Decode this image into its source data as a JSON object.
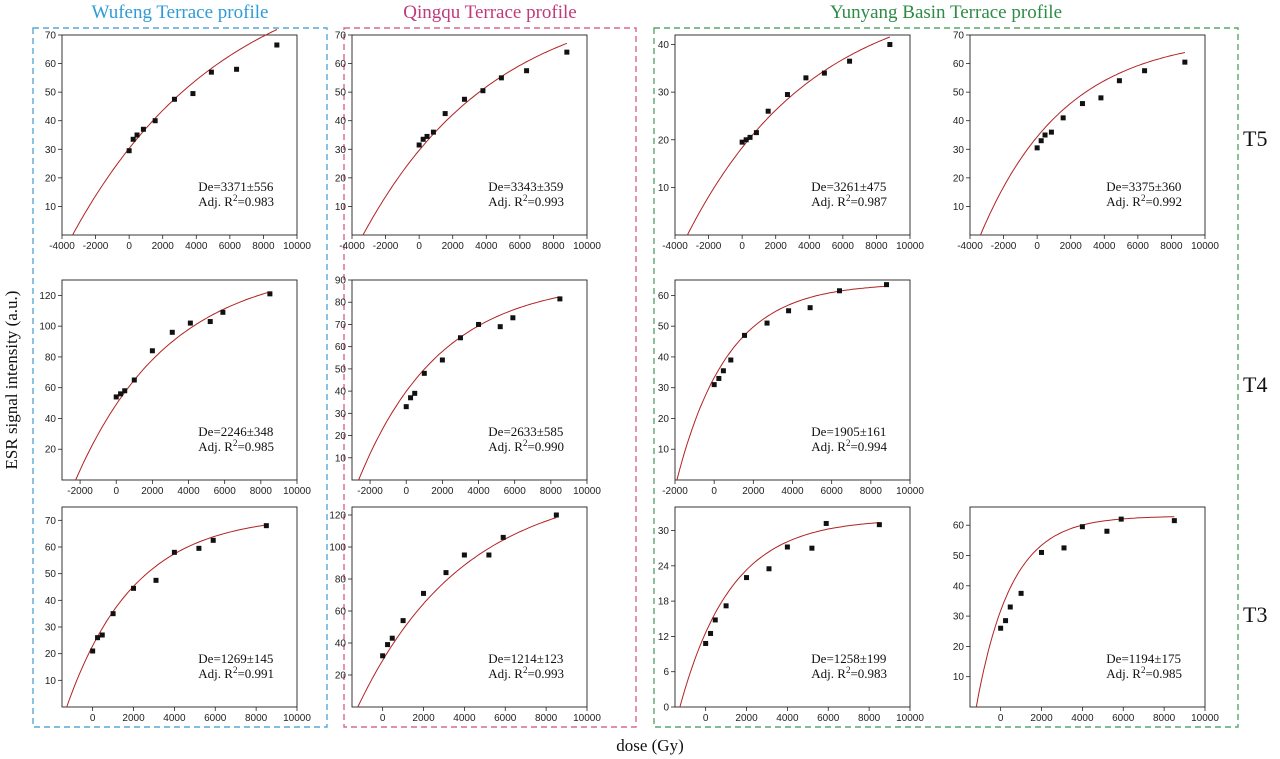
{
  "profiles": [
    {
      "title": "Wufeng Terrace profile",
      "color": "#2e9bd6"
    },
    {
      "title": "Qingqu Terrace profile",
      "color": "#c2397a"
    },
    {
      "title": "Yunyang Basin Terrace profile",
      "color": "#2e8b46"
    }
  ],
  "frame_colors": [
    "#5aa7d6",
    "#d66a94",
    "#5aa56c"
  ],
  "row_labels": [
    "T5",
    "T4",
    "T3"
  ],
  "y_axis_label": "ESR signal intensity (a.u.)",
  "x_axis_label": "dose (Gy)",
  "fit_color": "#b22222",
  "chart_data": [
    {
      "type": "scatter",
      "id": "r0c0",
      "row": 0,
      "col": 0,
      "x": [
        0,
        240,
        470,
        850,
        1550,
        2700,
        3800,
        4900,
        6400,
        8800
      ],
      "y": [
        29.5,
        33.5,
        35,
        37,
        40,
        47.5,
        49.5,
        57,
        58,
        66.5
      ],
      "xlim": [
        -4000,
        10000
      ],
      "ylim": [
        0,
        70
      ],
      "xticks": [
        -4000,
        -2000,
        0,
        2000,
        4000,
        6000,
        8000,
        10000
      ],
      "yticks": [
        10,
        20,
        30,
        40,
        50,
        60,
        70
      ],
      "fit": {
        "model": "saturating-exponential",
        "De": 3371,
        "Imax": 97,
        "D0": 9000
      },
      "annotation": [
        "De=3371±556",
        "Adj. R",
        "2",
        "=0.983"
      ]
    },
    {
      "type": "scatter",
      "id": "r0c1",
      "row": 0,
      "col": 1,
      "x": [
        0,
        240,
        470,
        850,
        1550,
        2700,
        3800,
        4900,
        6400,
        8800
      ],
      "y": [
        31.5,
        33.5,
        34.5,
        36,
        42.5,
        47.5,
        50.5,
        55,
        57.5,
        64
      ],
      "xlim": [
        -4000,
        10000
      ],
      "ylim": [
        0,
        70
      ],
      "xticks": [
        -4000,
        -2000,
        0,
        2000,
        4000,
        6000,
        8000,
        10000
      ],
      "yticks": [
        10,
        20,
        30,
        40,
        50,
        60,
        70
      ],
      "fit": {
        "model": "saturating-exponential",
        "De": 3343,
        "Imax": 85,
        "D0": 7800
      },
      "annotation": [
        "De=3343±359",
        "Adj. R",
        "2",
        "=0.993"
      ]
    },
    {
      "type": "scatter",
      "id": "r0c2",
      "row": 0,
      "col": 2,
      "x": [
        0,
        240,
        470,
        850,
        1550,
        2700,
        3800,
        4900,
        6400,
        8800
      ],
      "y": [
        19.5,
        20,
        20.5,
        21.5,
        26,
        29.5,
        33,
        34,
        36.5,
        40
      ],
      "xlim": [
        -4000,
        10000
      ],
      "ylim": [
        0,
        42
      ],
      "xticks": [
        -4000,
        -2000,
        0,
        2000,
        4000,
        6000,
        8000,
        10000
      ],
      "yticks": [
        10,
        20,
        30,
        40
      ],
      "fit": {
        "model": "saturating-exponential",
        "De": 3261,
        "Imax": 52,
        "D0": 7500
      },
      "annotation": [
        "De=3261±475",
        "Adj. R",
        "2",
        "=0.987"
      ]
    },
    {
      "type": "scatter",
      "id": "r0c3",
      "row": 0,
      "col": 3,
      "x": [
        0,
        240,
        470,
        850,
        1550,
        2700,
        3800,
        4900,
        6400,
        8800
      ],
      "y": [
        30.5,
        33,
        35,
        36,
        41,
        46,
        48,
        54,
        57.5,
        60.5
      ],
      "xlim": [
        -4000,
        10000
      ],
      "ylim": [
        0,
        70
      ],
      "xticks": [
        -4000,
        -2000,
        0,
        2000,
        4000,
        6000,
        8000,
        10000
      ],
      "yticks": [
        10,
        20,
        30,
        40,
        50,
        60,
        70
      ],
      "fit": {
        "model": "saturating-exponential",
        "De": 3375,
        "Imax": 70,
        "D0": 5000
      },
      "annotation": [
        "De=3375±360",
        "Adj. R",
        "2",
        "=0.992"
      ]
    },
    {
      "type": "scatter",
      "id": "r1c0",
      "row": 1,
      "col": 0,
      "x": [
        0,
        240,
        470,
        1000,
        2000,
        3100,
        4100,
        5200,
        5900,
        8500
      ],
      "y": [
        54,
        56,
        58,
        65,
        84,
        96,
        102,
        103,
        109,
        121
      ],
      "xlim": [
        -3000,
        10000
      ],
      "ylim": [
        0,
        130
      ],
      "xticks": [
        -2000,
        0,
        2000,
        4000,
        6000,
        8000,
        10000
      ],
      "yticks": [
        20,
        40,
        60,
        80,
        100,
        120
      ],
      "fit": {
        "model": "saturating-exponential",
        "De": 2246,
        "Imax": 140,
        "D0": 5200
      },
      "annotation": [
        "De=2246±348",
        "Adj. R",
        "2",
        "=0.985"
      ]
    },
    {
      "type": "scatter",
      "id": "r1c1",
      "row": 1,
      "col": 1,
      "x": [
        0,
        240,
        470,
        1000,
        2000,
        3000,
        4000,
        5200,
        5900,
        8500
      ],
      "y": [
        33,
        37,
        39,
        48,
        54,
        64,
        70,
        69,
        73,
        81.5
      ],
      "xlim": [
        -3000,
        10000
      ],
      "ylim": [
        0,
        90
      ],
      "xticks": [
        -2000,
        0,
        2000,
        4000,
        6000,
        8000,
        10000
      ],
      "yticks": [
        10,
        20,
        30,
        40,
        50,
        60,
        70,
        80,
        90
      ],
      "fit": {
        "model": "saturating-exponential",
        "De": 2633,
        "Imax": 90,
        "D0": 4500
      },
      "annotation": [
        "De=2633±585",
        "Adj. R",
        "2",
        "=0.990"
      ]
    },
    {
      "type": "scatter",
      "id": "r1c2",
      "row": 1,
      "col": 2,
      "x": [
        0,
        240,
        470,
        850,
        1550,
        2700,
        3800,
        4900,
        6400,
        8800
      ],
      "y": [
        31,
        33,
        35.5,
        39,
        47,
        51,
        55,
        56,
        61.5,
        63.5
      ],
      "xlim": [
        -2000,
        10000
      ],
      "ylim": [
        0,
        65
      ],
      "xticks": [
        -2000,
        0,
        2000,
        4000,
        6000,
        8000,
        10000
      ],
      "yticks": [
        10,
        20,
        30,
        40,
        50,
        60
      ],
      "fit": {
        "model": "saturating-exponential",
        "De": 1905,
        "Imax": 64,
        "D0": 2600
      },
      "annotation": [
        "De=1905±161",
        "Adj. R",
        "2",
        "=0.994"
      ]
    },
    {
      "type": "scatter",
      "id": "r2c0",
      "row": 2,
      "col": 0,
      "x": [
        0,
        240,
        470,
        1000,
        2000,
        3100,
        4000,
        5200,
        5900,
        8500
      ],
      "y": [
        21,
        26,
        27,
        35,
        44.5,
        47.5,
        58,
        59.5,
        62.5,
        68
      ],
      "xlim": [
        -1500,
        10000
      ],
      "ylim": [
        0,
        75
      ],
      "xticks": [
        0,
        2000,
        4000,
        6000,
        8000,
        10000
      ],
      "yticks": [
        10,
        20,
        30,
        40,
        50,
        60,
        70
      ],
      "fit": {
        "model": "saturating-exponential",
        "De": 1269,
        "Imax": 72,
        "D0": 3300
      },
      "annotation": [
        "De=1269±145",
        "Adj. R",
        "2",
        "=0.991"
      ]
    },
    {
      "type": "scatter",
      "id": "r2c1",
      "row": 2,
      "col": 1,
      "x": [
        0,
        240,
        470,
        1000,
        2000,
        3100,
        4000,
        5200,
        5900,
        8500
      ],
      "y": [
        32,
        39,
        43,
        54,
        71,
        84,
        95,
        95,
        106,
        120
      ],
      "xlim": [
        -1500,
        10000
      ],
      "ylim": [
        0,
        125
      ],
      "xticks": [
        0,
        2000,
        4000,
        6000,
        8000,
        10000
      ],
      "yticks": [
        20,
        40,
        60,
        80,
        100,
        120
      ],
      "fit": {
        "model": "saturating-exponential",
        "De": 1214,
        "Imax": 140,
        "D0": 5200
      },
      "annotation": [
        "De=1214±123",
        "Adj. R",
        "2",
        "=0.993"
      ]
    },
    {
      "type": "scatter",
      "id": "r2c2",
      "row": 2,
      "col": 2,
      "x": [
        0,
        240,
        470,
        1000,
        2000,
        3100,
        4000,
        5200,
        5900,
        8500
      ],
      "y": [
        10.8,
        12.5,
        14.8,
        17.2,
        22,
        23.5,
        27.2,
        27,
        31.2,
        31
      ],
      "xlim": [
        -1500,
        10000
      ],
      "ylim": [
        0,
        34
      ],
      "xticks": [
        0,
        2000,
        4000,
        6000,
        8000,
        10000
      ],
      "yticks": [
        0,
        6,
        12,
        18,
        24,
        30
      ],
      "fit": {
        "model": "saturating-exponential",
        "De": 1258,
        "Imax": 32,
        "D0": 2500
      },
      "annotation": [
        "De=1258±199",
        "Adj. R",
        "2",
        "=0.983"
      ]
    },
    {
      "type": "scatter",
      "id": "r2c3",
      "row": 2,
      "col": 3,
      "x": [
        0,
        240,
        470,
        1000,
        2000,
        3100,
        4000,
        5200,
        5900,
        8500
      ],
      "y": [
        26,
        28.5,
        33,
        37.5,
        51,
        52.5,
        59.5,
        58,
        62,
        61.5
      ],
      "xlim": [
        -1500,
        10000
      ],
      "ylim": [
        0,
        66
      ],
      "xticks": [
        0,
        2000,
        4000,
        6000,
        8000,
        10000
      ],
      "yticks": [
        10,
        20,
        30,
        40,
        50,
        60
      ],
      "fit": {
        "model": "saturating-exponential",
        "De": 1194,
        "Imax": 63,
        "D0": 1700
      },
      "annotation": [
        "De=1194±175",
        "Adj. R",
        "2",
        "=0.985"
      ]
    }
  ]
}
